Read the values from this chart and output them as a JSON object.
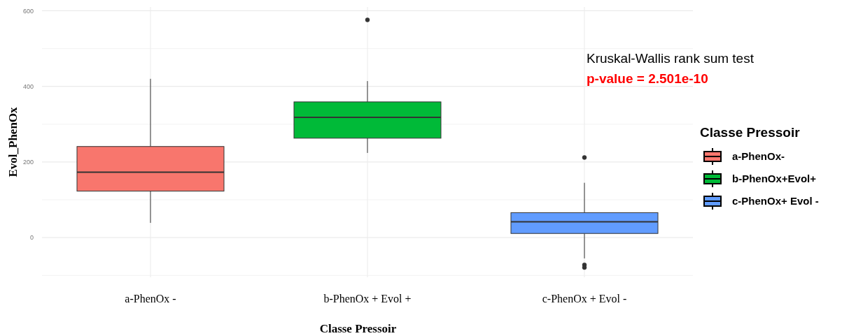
{
  "chart_data": {
    "type": "box",
    "xlabel": "Classe Pressoir",
    "ylabel": "Evol_PhenOx",
    "legend_title": "Classe Pressoir",
    "categories": [
      "a-PhenOx -",
      "b-PhenOx + Evol +",
      "c-PhenOx + Evol -"
    ],
    "ylim": [
      -105,
      610
    ],
    "yticks": [
      {
        "value": -100,
        "label": null
      },
      0,
      {
        "value": 100,
        "label": null
      },
      200,
      {
        "value": 300,
        "label": null
      },
      400,
      {
        "value": 500,
        "label": null
      },
      600
    ],
    "grid": true,
    "legend": "right",
    "series": [
      {
        "name": "a-PhenOx-",
        "color": "#f8766d",
        "boxes": [
          {
            "low": 39,
            "q1": 123,
            "median": 173,
            "q3": 241,
            "high": 420
          },
          null,
          null
        ]
      },
      {
        "name": "b-PhenOx+Evol+",
        "color": "#00ba38",
        "boxes": [
          null,
          {
            "low": 224,
            "q1": 263,
            "median": 318,
            "q3": 359,
            "high": 414,
            "outliers": [
              576
            ]
          },
          null
        ]
      },
      {
        "name": "c-PhenOx+ Evol -",
        "color": "#619cff",
        "boxes": [
          null,
          null,
          {
            "low": -55,
            "q1": 11,
            "median": 42,
            "q3": 66,
            "high": 145,
            "outliers": [
              212,
              -72,
              -79
            ]
          }
        ]
      }
    ],
    "annotations": [
      "Kruskal-Wallis rank sum test",
      "p-value = 2.501e-10"
    ]
  }
}
